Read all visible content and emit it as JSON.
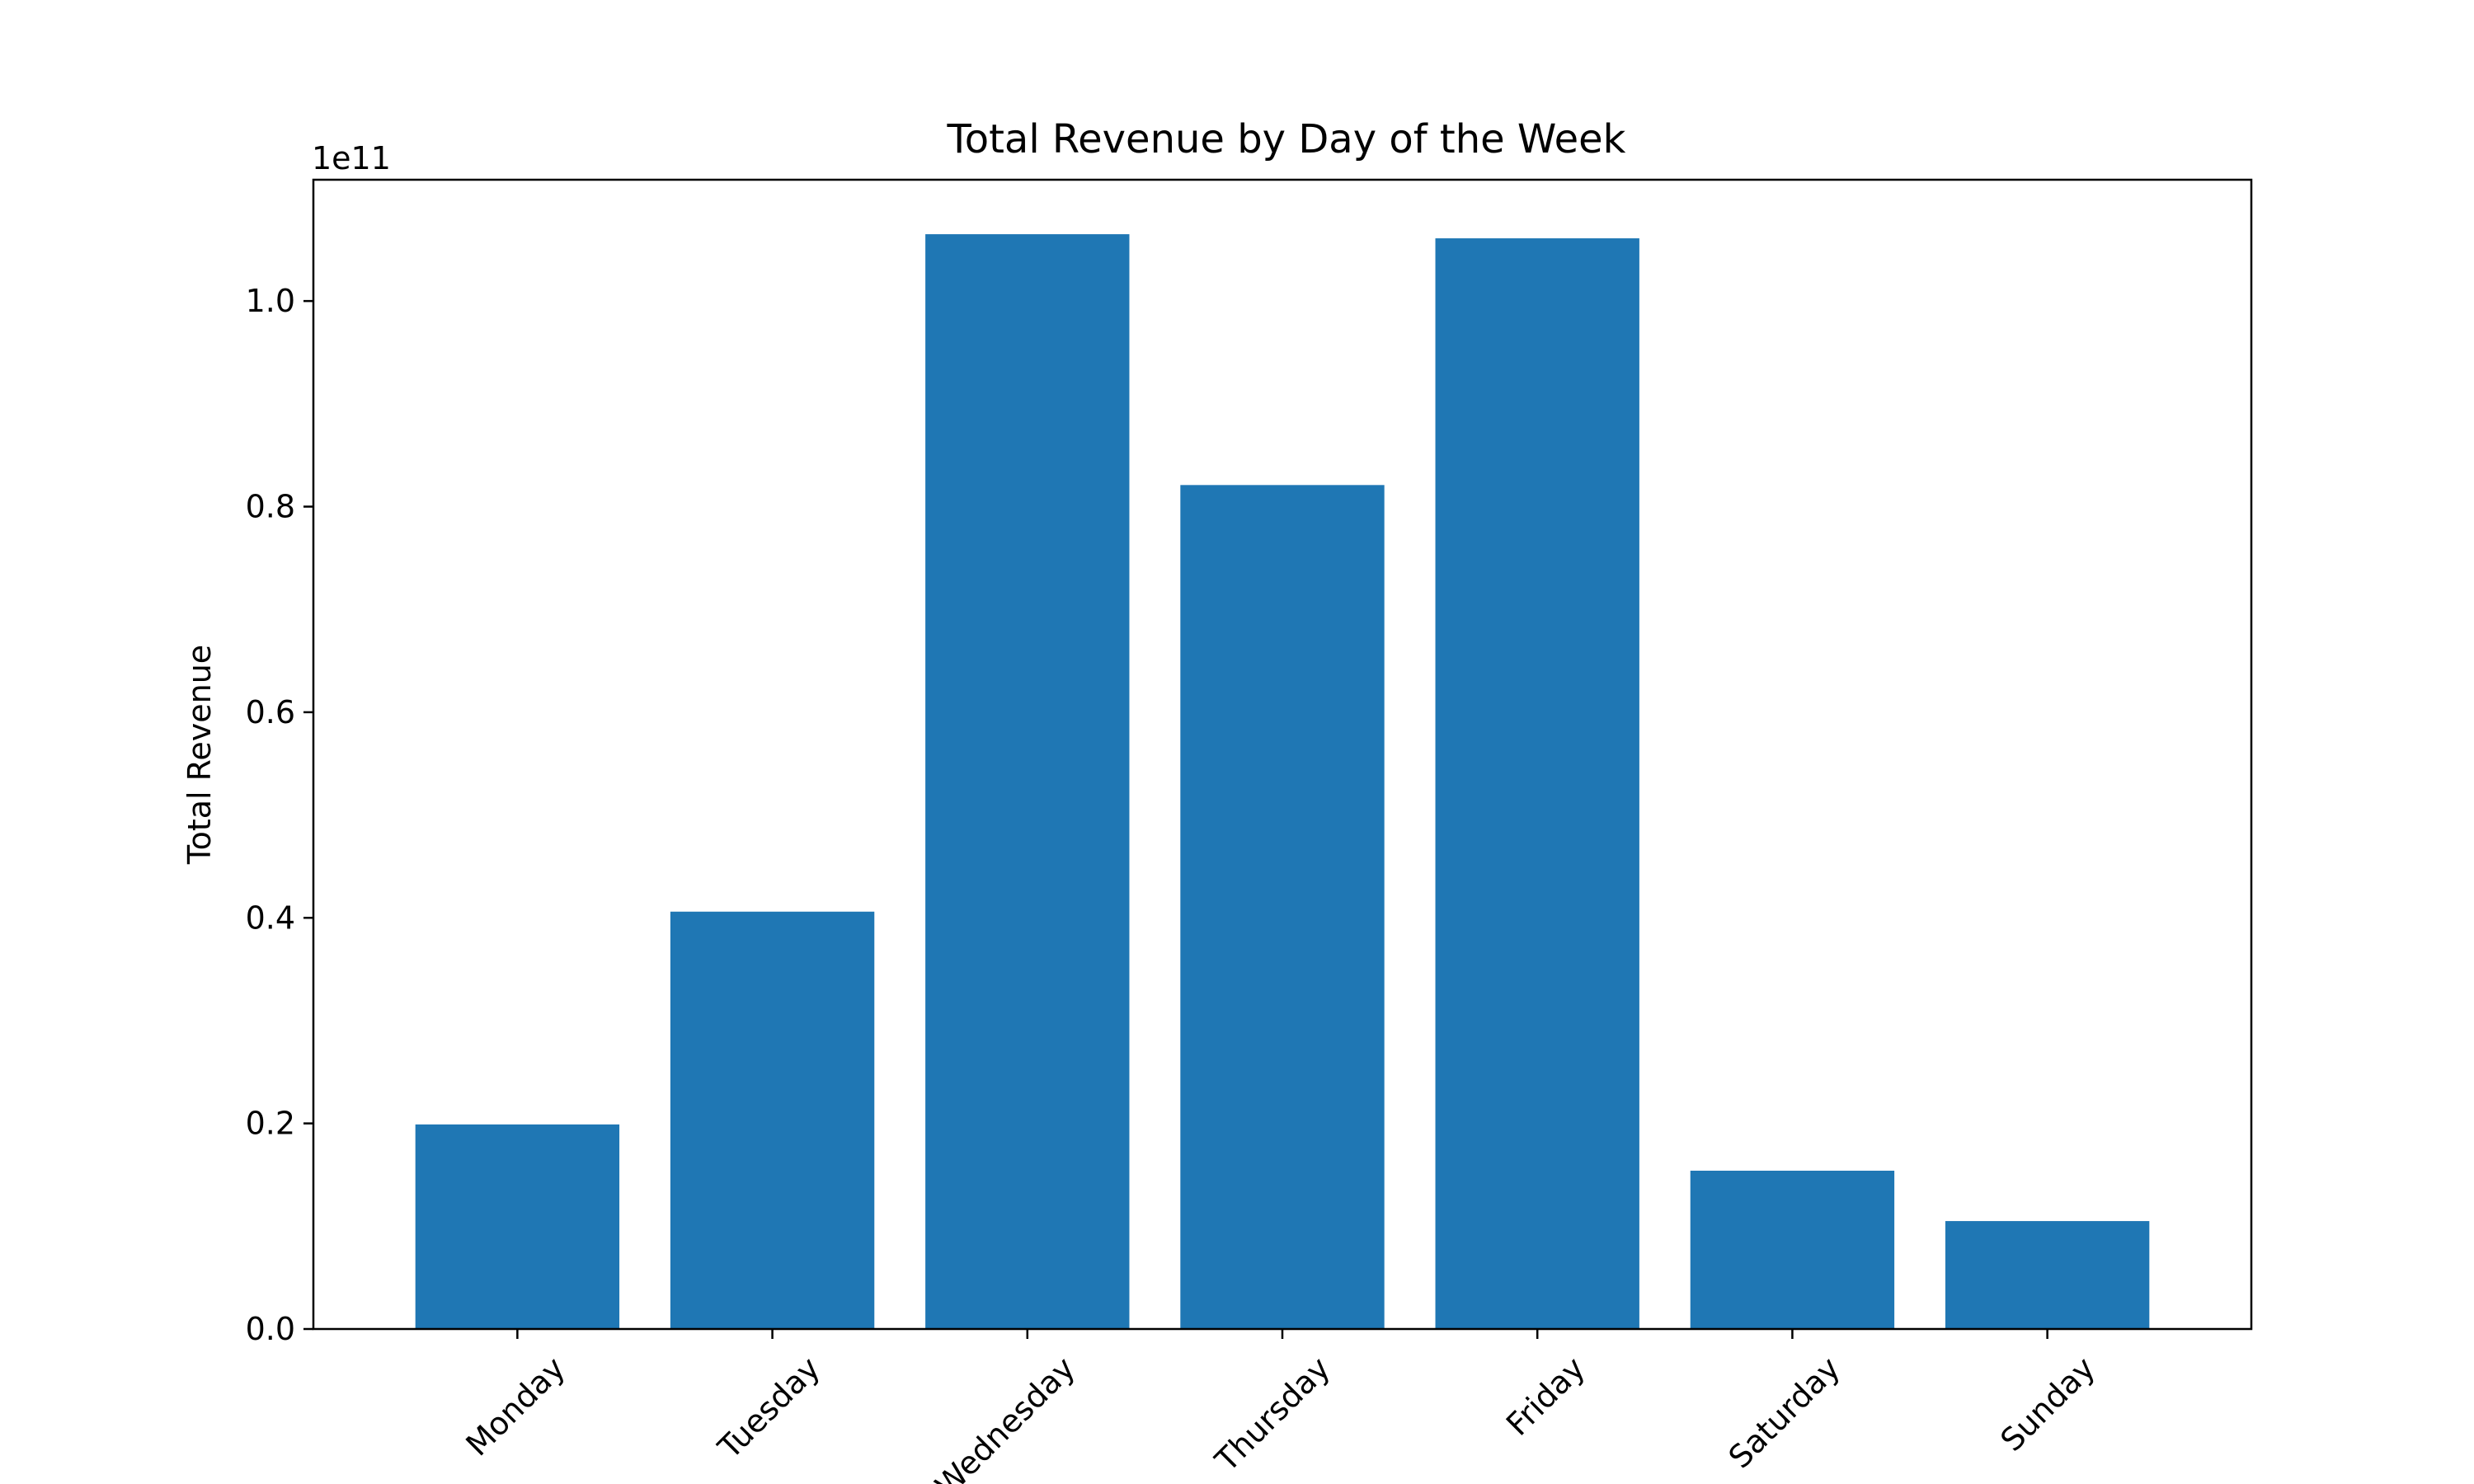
{
  "chart_data": {
    "type": "bar",
    "title": "Total Revenue by Day of the Week",
    "xlabel": "",
    "ylabel": "Total Revenue",
    "axis_offset_label": "1e11",
    "categories": [
      "Monday",
      "Tuesday",
      "Wednesday",
      "Thursday",
      "Friday",
      "Saturday",
      "Sunday"
    ],
    "values": [
      0.199,
      0.406,
      1.065,
      0.821,
      1.061,
      0.154,
      0.105
    ],
    "value_scale": "1e11",
    "yticks": [
      0.0,
      0.2,
      0.4,
      0.6,
      0.8,
      1.0
    ],
    "ytick_labels": [
      "0.0",
      "0.2",
      "0.4",
      "0.6",
      "0.8",
      "1.0"
    ],
    "ylim": [
      0,
      1.118
    ],
    "grid": false,
    "legend": "none",
    "colors": {
      "bar": "#1f77b4",
      "axis": "#000000",
      "background": "#ffffff"
    }
  }
}
